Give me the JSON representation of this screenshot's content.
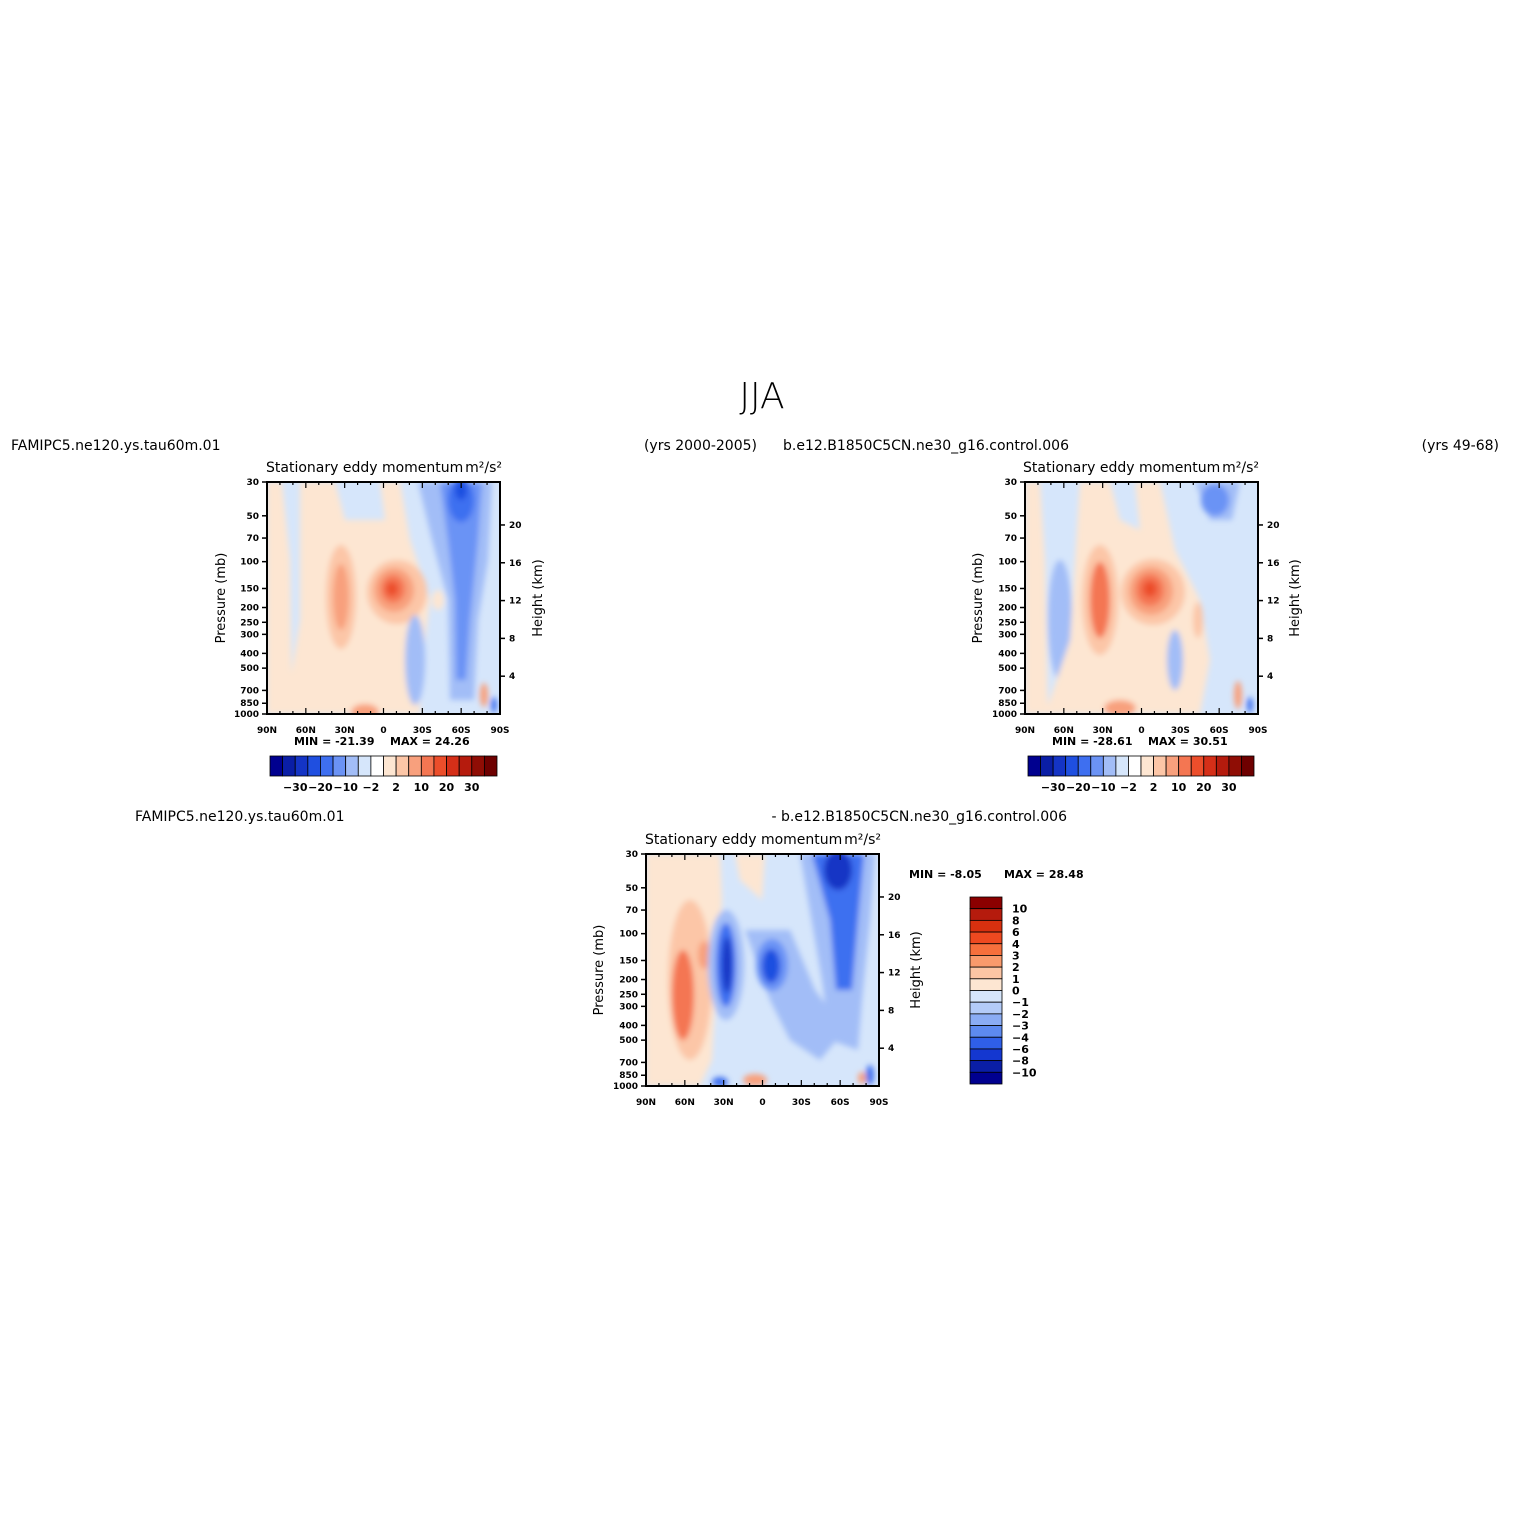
{
  "figure_title": "JJA",
  "panel_tl": {
    "case": "FAMIPC5.ne120.ys.tau60m.01",
    "years": "(yrs 2000-2005)",
    "title": "Stationary eddy momentum",
    "units": "m²/s²",
    "min_text": "MIN = -21.39",
    "max_text": "MAX = 24.26"
  },
  "panel_tr": {
    "case": "b.e12.B1850C5CN.ne30_g16.control.006",
    "years": "(yrs 49-68)",
    "title": "Stationary eddy momentum",
    "units": "m²/s²",
    "min_text": "MIN = -28.61",
    "max_text": "MAX = 30.51"
  },
  "panel_diff": {
    "case_a": "FAMIPC5.ne120.ys.tau60m.01",
    "case_b": "- b.e12.B1850C5CN.ne30_g16.control.006",
    "title": "Stationary eddy momentum",
    "units": "m²/s²",
    "min_text": "MIN = -8.05",
    "max_text": "MAX = 28.48"
  },
  "chart_data": [
    {
      "type": "heatmap",
      "title": "Stationary eddy momentum",
      "units": "m²/s²",
      "ylabel": "Pressure (mb)",
      "y2label": "Height (km)",
      "x_ticks": [
        "90N",
        "60N",
        "30N",
        "0",
        "30S",
        "60S",
        "90S"
      ],
      "y_ticks": [
        30,
        50,
        70,
        100,
        150,
        200,
        250,
        300,
        400,
        500,
        700,
        850,
        1000
      ],
      "y2_ticks": [
        20,
        16,
        12,
        8,
        4
      ],
      "min": -21.39,
      "max": 24.26,
      "colorbar_levels": [
        -30,
        -20,
        -10,
        -2,
        2,
        10,
        20,
        30
      ],
      "features": [
        {
          "lat": 8,
          "p": 150,
          "value": 24.26
        },
        {
          "lat": 34,
          "p": 200,
          "value": 8
        },
        {
          "lat": -60,
          "p": 40,
          "value": -21.39
        },
        {
          "lat": -60,
          "p": 250,
          "value": -8
        }
      ]
    },
    {
      "type": "heatmap",
      "title": "Stationary eddy momentum",
      "units": "m²/s²",
      "ylabel": "Pressure (mb)",
      "y2label": "Height (km)",
      "x_ticks": [
        "90N",
        "60N",
        "30N",
        "0",
        "30S",
        "60S",
        "90S"
      ],
      "y_ticks": [
        30,
        50,
        70,
        100,
        150,
        200,
        250,
        300,
        400,
        500,
        700,
        850,
        1000
      ],
      "y2_ticks": [
        20,
        16,
        12,
        8,
        4
      ],
      "min": -28.61,
      "max": 30.51,
      "colorbar_levels": [
        -30,
        -20,
        -10,
        -2,
        2,
        10,
        20,
        30
      ],
      "features": [
        {
          "lat": 8,
          "p": 150,
          "value": 30.51
        },
        {
          "lat": 30,
          "p": 200,
          "value": 14
        },
        {
          "lat": -60,
          "p": 40,
          "value": -12
        }
      ]
    },
    {
      "type": "heatmap",
      "title": "Stationary eddy momentum",
      "units": "m²/s²",
      "ylabel": "Pressure (mb)",
      "y2label": "Height (km)",
      "x_ticks": [
        "90N",
        "60N",
        "30N",
        "0",
        "30S",
        "60S",
        "90S"
      ],
      "y_ticks": [
        30,
        50,
        70,
        100,
        150,
        200,
        250,
        300,
        400,
        500,
        700,
        850,
        1000
      ],
      "y2_ticks": [
        20,
        16,
        12,
        8,
        4
      ],
      "min": -8.05,
      "max": 28.48,
      "colorbar_levels": [
        10,
        8,
        6,
        4,
        3,
        2,
        1,
        0,
        -1,
        -2,
        -3,
        -4,
        -6,
        -8,
        -10
      ],
      "features": [
        {
          "lat": 62,
          "p": 250,
          "value": 5
        },
        {
          "lat": 30,
          "p": 170,
          "value": -7
        },
        {
          "lat": 0,
          "p": 180,
          "value": -8
        },
        {
          "lat": -60,
          "p": 35,
          "value": -8.05
        }
      ]
    }
  ],
  "colors": {
    "blue_red_18": [
      "#00008f",
      "#0a1ea6",
      "#1434c5",
      "#1f4fe0",
      "#3e6ff0",
      "#6b93f5",
      "#a2bdf7",
      "#d6e6fb",
      "#ffffff",
      "#fde6d2",
      "#fcc6a7",
      "#f8a07d",
      "#f47652",
      "#ec4e2b",
      "#d52f18",
      "#b51b0d",
      "#8f0d05",
      "#6e0000"
    ],
    "diff_levels": [
      "#8b0000",
      "#b51b0d",
      "#d8300f",
      "#ee4920",
      "#f66f3c",
      "#f99a6c",
      "#fcc5a4",
      "#fde6d2",
      "#d6e6fb",
      "#b3cbf8",
      "#8aacf4",
      "#5d8af0",
      "#2f5fe8",
      "#1437d0",
      "#0a1ea6",
      "#00008f"
    ]
  }
}
